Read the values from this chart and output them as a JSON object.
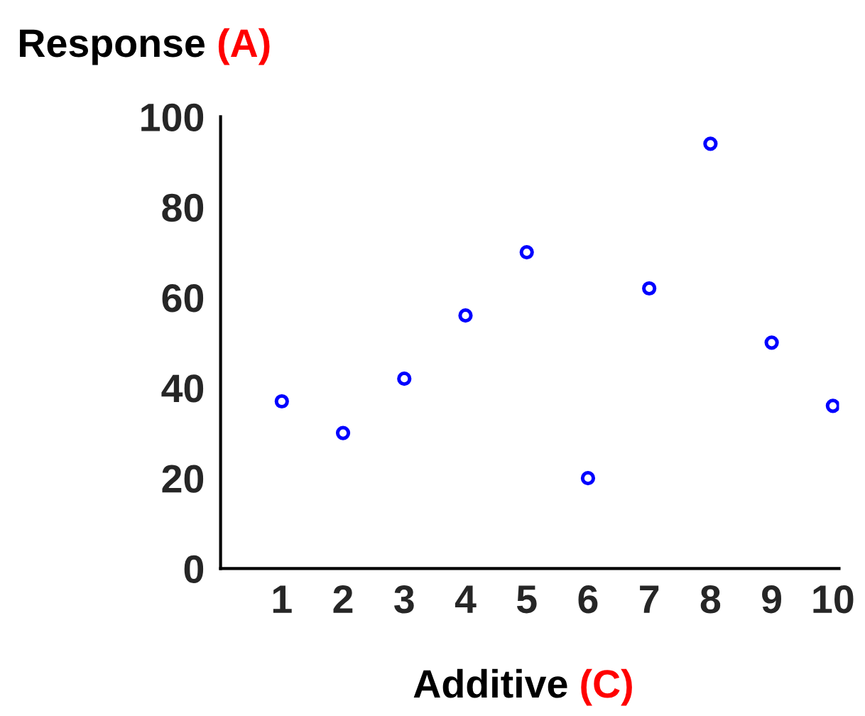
{
  "chart_data": {
    "type": "scatter",
    "title": "Response (A)",
    "xlabel": "Additive (C)",
    "categories": [
      "1",
      "2",
      "3",
      "4",
      "5",
      "6",
      "7",
      "8",
      "9",
      "10"
    ],
    "series": [
      {
        "color": "#0000ff",
        "values": [
          37,
          30,
          42,
          56,
          70,
          20,
          62,
          94,
          50,
          36
        ]
      }
    ],
    "ylim": [
      0,
      100
    ],
    "yticks": [
      0,
      20,
      40,
      60,
      80,
      100
    ],
    "marker": "circle",
    "grid": false,
    "legend": false
  }
}
